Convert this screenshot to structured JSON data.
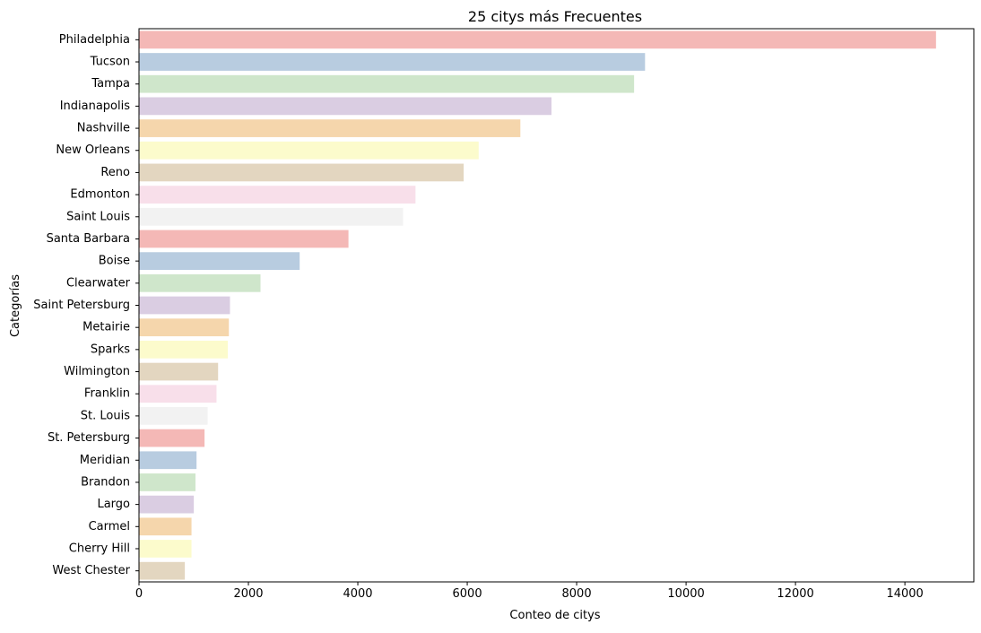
{
  "chart_data": {
    "type": "bar",
    "orientation": "horizontal",
    "title": "25 citys más Frecuentes",
    "xlabel": "Conteo de citys",
    "ylabel": "Categorías",
    "xlim": [
      0,
      15260
    ],
    "x_ticks": [
      0,
      2000,
      4000,
      6000,
      8000,
      10000,
      12000,
      14000
    ],
    "grid": false,
    "legend": "none",
    "categories": [
      "Philadelphia",
      "Tucson",
      "Tampa",
      "Indianapolis",
      "Nashville",
      "New Orleans",
      "Reno",
      "Edmonton",
      "Saint Louis",
      "Santa Barbara",
      "Boise",
      "Clearwater",
      "Saint Petersburg",
      "Metairie",
      "Sparks",
      "Wilmington",
      "Franklin",
      "St. Louis",
      "St. Petersburg",
      "Meridian",
      "Brandon",
      "Largo",
      "Carmel",
      "Cherry Hill",
      "West Chester"
    ],
    "values": [
      14569,
      9250,
      9050,
      7540,
      6971,
      6209,
      5935,
      5054,
      4827,
      3829,
      2937,
      2221,
      1663,
      1643,
      1624,
      1446,
      1417,
      1255,
      1198,
      1052,
      1033,
      1002,
      960,
      960,
      838
    ],
    "palette": [
      "#f4b8b6",
      "#b8cce0",
      "#cfe6cb",
      "#dacde2",
      "#f5d6ac",
      "#fcfbcc",
      "#e3d6c0",
      "#f8dfea",
      "#f2f2f2"
    ]
  }
}
